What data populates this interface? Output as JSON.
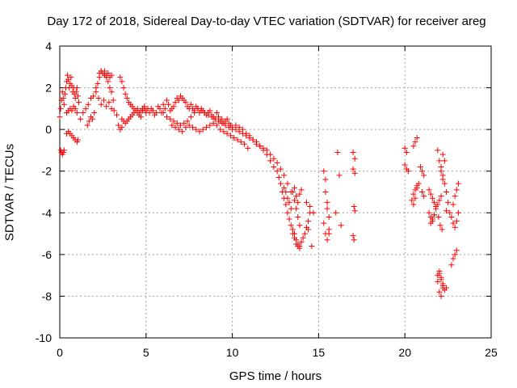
{
  "chart_data": {
    "type": "scatter",
    "title": "Day 172 of 2018, Sidereal Day-to-day VTEC variation (SDTVAR) for receiver areg",
    "xlabel": "GPS time / hours",
    "ylabel": "SDTVAR / TECUs",
    "xlim": [
      0,
      25
    ],
    "ylim": [
      -10,
      4
    ],
    "xticks": [
      0,
      5,
      10,
      15,
      20,
      25
    ],
    "yticks": [
      4,
      2,
      0,
      -2,
      -4,
      -6,
      -8,
      -10
    ],
    "grid": true,
    "marker": "+",
    "color": "#ff0000",
    "series": [
      {
        "name": "SDTVAR",
        "x": [
          0.0,
          0.05,
          0.1,
          0.15,
          0.2,
          0.25,
          0.3,
          0.35,
          0.4,
          0.45,
          0.5,
          0.55,
          0.6,
          0.65,
          0.7,
          0.75,
          0.8,
          0.85,
          0.9,
          0.95,
          1.0,
          1.05,
          1.1,
          0.05,
          0.1,
          0.15,
          0.2,
          0.25,
          0.4,
          0.5,
          0.6,
          0.7,
          0.8,
          0.9,
          1.0,
          1.05,
          0.4,
          0.5,
          0.6,
          0.7,
          0.8,
          0.9,
          1.0,
          1.2,
          1.35,
          1.5,
          1.65,
          1.8,
          1.95,
          2.1,
          2.25,
          2.4,
          2.55,
          2.7,
          2.85,
          3.0,
          3.15,
          3.3,
          1.6,
          1.7,
          1.8,
          1.9,
          2.0,
          2.1,
          2.2,
          2.3,
          2.4,
          2.5,
          2.6,
          2.7,
          2.8,
          2.9,
          3.0,
          3.1,
          2.3,
          2.4,
          2.5,
          2.6,
          2.7,
          2.8,
          2.9,
          3.0,
          3.5,
          3.6,
          3.7,
          3.8,
          3.9,
          4.0,
          4.1,
          4.2,
          4.3,
          4.4,
          4.5,
          4.6,
          4.7,
          4.8,
          4.9,
          5.0,
          5.1,
          5.2,
          5.3,
          5.4,
          5.5,
          5.6,
          5.7,
          5.8,
          5.9,
          6.0,
          6.1,
          6.2,
          6.3,
          6.4,
          6.5,
          6.6,
          6.7,
          6.8,
          6.9,
          7.0,
          7.1,
          7.2,
          7.3,
          7.4,
          7.5,
          7.6,
          7.7,
          7.8,
          7.9,
          8.0,
          8.1,
          8.2,
          8.3,
          8.4,
          8.5,
          8.6,
          8.7,
          8.8,
          8.9,
          9.0,
          9.1,
          9.2,
          9.3,
          9.4,
          9.5,
          9.6,
          9.7,
          9.8,
          9.9,
          10.0,
          3.4,
          3.5,
          3.6,
          3.6,
          3.7,
          3.8,
          3.9,
          4.0,
          4.1,
          4.2,
          4.3,
          4.4,
          4.5,
          4.6,
          4.7,
          4.8,
          4.9,
          5.0,
          6.0,
          6.2,
          6.4,
          6.6,
          6.8,
          7.0,
          7.2,
          7.4,
          7.6,
          7.8,
          8.0,
          8.2,
          8.4,
          8.6,
          8.8,
          9.0,
          9.2,
          9.4,
          9.6,
          9.8,
          10.0,
          10.2,
          10.4,
          10.6,
          10.8,
          11.0,
          6.5,
          6.7,
          6.9,
          7.1,
          7.3,
          7.5,
          7.7,
          7.9,
          8.1,
          8.3,
          8.5,
          8.7,
          8.9,
          9.1,
          9.3,
          9.5,
          9.7,
          9.9,
          10.1,
          10.3,
          10.5,
          10.7,
          10.9,
          10.2,
          10.4,
          10.6,
          10.8,
          11.0,
          11.2,
          11.4,
          11.6,
          11.8,
          12.0,
          12.2,
          12.4,
          12.6,
          12.7,
          12.8,
          12.9,
          13.0,
          13.1,
          13.2,
          13.3,
          13.4,
          13.5,
          13.6,
          13.7,
          13.8,
          13.9,
          11.0,
          11.2,
          11.4,
          11.6,
          11.8,
          12.0,
          12.2,
          12.4,
          12.6,
          12.8,
          13.0,
          13.2,
          13.4,
          13.6,
          13.7,
          13.8,
          13.9,
          13.0,
          13.1,
          13.2,
          13.3,
          13.4,
          13.5,
          13.6,
          13.7,
          13.8,
          13.9,
          14.0,
          13.5,
          13.6,
          13.7,
          13.8,
          13.9,
          14.0,
          14.1,
          14.2,
          14.3,
          14.4,
          14.5,
          14.3,
          14.5,
          14.7,
          14.4,
          14.6,
          15.3,
          15.4,
          15.5,
          15.6,
          15.3,
          15.4,
          15.5,
          15.6,
          15.4,
          15.5,
          15.6,
          16.1,
          16.2,
          16.0,
          16.3,
          17.0,
          17.1,
          17.0,
          17.1,
          17.05,
          17.1,
          17.0,
          17.05,
          20.0,
          20.1,
          20.0,
          20.1,
          20.2,
          20.5,
          20.6,
          20.7,
          20.5,
          20.6,
          20.7,
          20.8,
          20.4,
          20.5,
          20.6,
          20.7,
          20.9,
          21.0,
          21.1,
          21.0,
          21.1,
          21.4,
          21.5,
          21.6,
          21.7,
          21.8,
          21.4,
          21.5,
          21.6,
          21.7,
          21.5,
          21.6,
          21.7,
          21.8,
          21.9,
          22.0,
          22.1,
          22.0,
          22.1,
          22.2,
          21.9,
          22.0,
          22.1,
          22.2,
          21.9,
          22.0,
          22.1,
          22.2,
          22.3,
          22.4,
          22.2,
          22.3,
          22.1,
          22.2,
          22.3,
          22.4,
          22.5,
          22.6,
          22.7,
          22.8,
          22.9,
          23.0,
          23.1,
          22.8,
          22.9,
          23.0,
          23.1,
          22.7,
          22.8,
          22.9,
          23.0,
          21.9,
          22.0,
          22.1,
          22.2,
          21.95,
          22.05,
          22.15,
          22.4
        ],
        "y": [
          0.6,
          1.0,
          1.4,
          1.8,
          1.5,
          1.2,
          1.7,
          2.0,
          2.3,
          2.6,
          2.4,
          2.0,
          2.2,
          2.5,
          2.1,
          1.8,
          2.0,
          1.7,
          1.5,
          1.8,
          2.0,
          1.6,
          1.3,
          -1.0,
          -1.1,
          -1.2,
          -1.1,
          -1.0,
          -0.2,
          -0.1,
          -0.2,
          -0.3,
          -0.4,
          -0.5,
          -0.6,
          -0.5,
          0.8,
          0.9,
          1.0,
          0.9,
          1.1,
          1.0,
          0.8,
          0.5,
          0.8,
          1.0,
          1.2,
          1.5,
          1.6,
          1.8,
          1.5,
          1.2,
          1.4,
          1.1,
          1.3,
          1.0,
          0.9,
          0.7,
          0.2,
          0.4,
          0.6,
          0.5,
          0.8,
          2.0,
          2.2,
          2.5,
          2.8,
          2.7,
          2.6,
          2.5,
          2.3,
          2.0,
          1.8,
          1.4,
          2.7,
          2.8,
          2.7,
          2.8,
          2.6,
          2.7,
          2.5,
          2.6,
          2.5,
          2.3,
          2.0,
          1.7,
          1.5,
          1.3,
          1.2,
          1.1,
          1.0,
          0.9,
          1.0,
          0.8,
          0.9,
          1.0,
          1.1,
          0.9,
          1.0,
          0.8,
          1.0,
          0.9,
          0.7,
          0.8,
          1.1,
          1.0,
          0.8,
          1.2,
          1.0,
          1.4,
          1.2,
          0.9,
          1.0,
          1.1,
          1.3,
          1.5,
          1.4,
          1.6,
          1.5,
          1.4,
          1.3,
          1.1,
          1.0,
          1.2,
          1.0,
          0.9,
          1.1,
          1.0,
          0.8,
          1.0,
          0.9,
          0.8,
          0.7,
          0.8,
          0.9,
          0.7,
          0.6,
          0.5,
          0.8,
          0.6,
          0.4,
          0.5,
          0.3,
          0.4,
          0.5,
          0.3,
          0.2,
          0.1,
          0.2,
          0.0,
          0.1,
          0.5,
          0.4,
          0.3,
          0.4,
          0.5,
          0.6,
          0.7,
          0.8,
          0.9,
          0.8,
          0.7,
          0.6,
          0.9,
          1.0,
          0.8,
          0.8,
          0.6,
          0.5,
          0.4,
          0.3,
          0.2,
          0.3,
          0.4,
          0.6,
          0.8,
          1.0,
          0.9,
          0.8,
          0.7,
          0.6,
          0.5,
          0.4,
          0.3,
          0.2,
          0.1,
          0.0,
          0.0,
          -0.1,
          -0.2,
          -0.3,
          -0.4,
          0.2,
          0.1,
          0.0,
          -0.1,
          0.1,
          0.2,
          0.1,
          0.0,
          -0.1,
          0.0,
          0.1,
          0.2,
          0.3,
          0.2,
          0.0,
          -0.1,
          -0.2,
          -0.3,
          -0.4,
          -0.5,
          -0.6,
          -0.7,
          -0.9,
          0.2,
          0.1,
          0.0,
          -0.2,
          -0.4,
          -0.5,
          -0.7,
          -0.8,
          -1.0,
          -1.2,
          -1.5,
          -1.8,
          -2.0,
          -2.3,
          -2.6,
          -3.0,
          -3.3,
          -3.6,
          -4.0,
          -4.3,
          -4.6,
          -5.0,
          -5.2,
          -5.5,
          -5.6,
          -5.7,
          -0.3,
          -0.5,
          -0.6,
          -0.8,
          -0.9,
          -1.0,
          -1.2,
          -1.4,
          -1.6,
          -1.9,
          -2.2,
          -2.6,
          -3.0,
          -3.4,
          -3.8,
          -4.2,
          -4.6,
          -2.8,
          -3.0,
          -3.3,
          -3.5,
          -3.8,
          -3.0,
          -2.8,
          -3.2,
          -3.5,
          -3.1,
          -2.9,
          -4.8,
          -5.0,
          -5.3,
          -5.5,
          -5.6,
          -5.4,
          -5.2,
          -5.0,
          -4.7,
          -4.4,
          -4.0,
          -3.5,
          -3.7,
          -4.0,
          -4.8,
          -5.6,
          -2.0,
          -3.0,
          -3.8,
          -4.2,
          -4.5,
          -5.0,
          -5.3,
          -4.8,
          -2.4,
          -3.5,
          -5.0,
          -1.1,
          -2.2,
          -4.0,
          -4.6,
          -1.1,
          -1.4,
          -1.9,
          -2.1,
          -3.7,
          -3.9,
          -5.1,
          -5.3,
          -0.9,
          -1.1,
          -1.7,
          -1.9,
          -2.0,
          -0.8,
          -0.6,
          -0.4,
          -3.1,
          -3.3,
          -2.8,
          -2.6,
          -3.4,
          -3.6,
          -2.9,
          -2.7,
          -1.8,
          -2.0,
          -2.2,
          -3.0,
          -3.2,
          -2.9,
          -3.1,
          -3.3,
          -3.5,
          -3.7,
          -4.0,
          -4.2,
          -4.4,
          -4.1,
          -4.5,
          -4.3,
          -4.1,
          -3.8,
          -3.6,
          -3.4,
          -3.2,
          -6.8,
          -7.2,
          -7.5,
          -7.0,
          -7.8,
          -8.0,
          -7.6,
          -7.3,
          -6.9,
          -7.1,
          -7.4,
          -7.7,
          -7.6,
          -1.2,
          -1.5,
          -1.8,
          -2.2,
          -2.6,
          -3.0,
          -3.5,
          -4.0,
          -4.2,
          -4.5,
          -4.7,
          -4.4,
          -4.0,
          -3.6,
          -3.2,
          -2.9,
          -2.6,
          -6.5,
          -6.2,
          -6.0,
          -5.8,
          -1.0,
          -1.5,
          -2.0,
          -2.4,
          -4.2,
          -4.6,
          -4.8,
          -3.9
        ]
      }
    ]
  }
}
